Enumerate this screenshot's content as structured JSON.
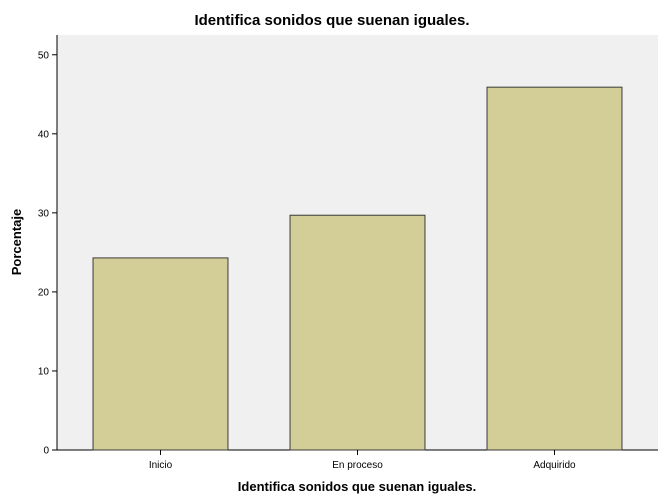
{
  "chart_data": {
    "type": "bar",
    "title": "Identifica sonidos que suenan iguales.",
    "xlabel": "Identifica sonidos que suenan iguales.",
    "ylabel": "Porcentaje",
    "categories": [
      "Inicio",
      "En proceso",
      "Adquirido"
    ],
    "values": [
      24.3,
      29.7,
      45.9
    ],
    "ylim": [
      0,
      52.5
    ],
    "yticks": [
      "0",
      "10",
      "20",
      "30",
      "40",
      "50"
    ],
    "grid": false,
    "plot_background": "#f0f0f0",
    "bar_color": "#d3ce97",
    "bar_edge_color": "#3a3a3a"
  }
}
